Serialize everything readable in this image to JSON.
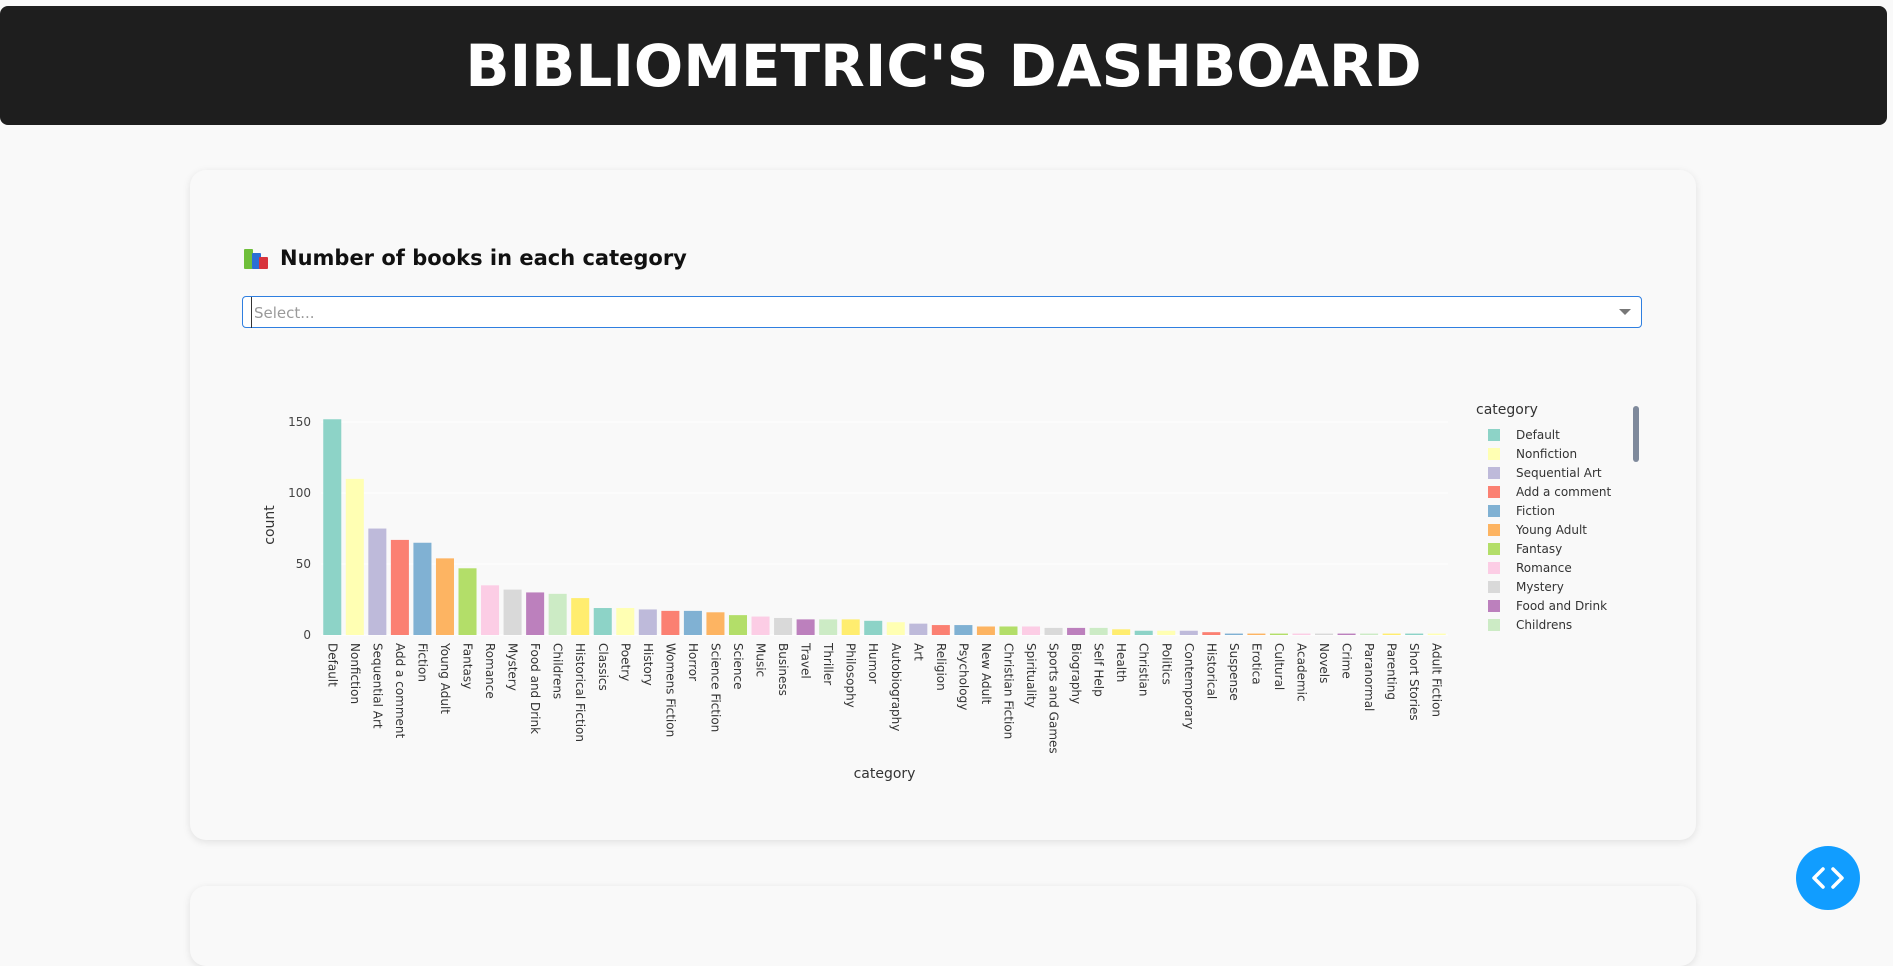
{
  "header": {
    "title": "BIBLIOMETRIC'S DASHBOARD"
  },
  "card": {
    "title": "Number of books in each category",
    "select_placeholder": "Select..."
  },
  "fab": {
    "icon": "code-icon"
  },
  "chart_data": {
    "type": "bar",
    "xlabel": "category",
    "ylabel": "count",
    "ylim": [
      0,
      155
    ],
    "yticks": [
      0,
      50,
      100,
      150
    ],
    "grid": true,
    "legend_title": "category",
    "legend_position": "right",
    "categories": [
      "Default",
      "Nonfiction",
      "Sequential Art",
      "Add a comment",
      "Fiction",
      "Young Adult",
      "Fantasy",
      "Romance",
      "Mystery",
      "Food and Drink",
      "Childrens",
      "Historical Fiction",
      "Classics",
      "Poetry",
      "History",
      "Womens Fiction",
      "Horror",
      "Science Fiction",
      "Science",
      "Music",
      "Business",
      "Travel",
      "Thriller",
      "Philosophy",
      "Humor",
      "Autobiography",
      "Art",
      "Religion",
      "Psychology",
      "New Adult",
      "Christian Fiction",
      "Spirituality",
      "Sports and Games",
      "Biography",
      "Self Help",
      "Health",
      "Christian",
      "Politics",
      "Contemporary",
      "Historical",
      "Suspense",
      "Erotica",
      "Cultural",
      "Academic",
      "Novels",
      "Crime",
      "Paranormal",
      "Parenting",
      "Short Stories",
      "Adult Fiction"
    ],
    "values": [
      152,
      110,
      75,
      67,
      65,
      54,
      47,
      35,
      32,
      30,
      29,
      26,
      19,
      19,
      18,
      17,
      17,
      16,
      14,
      13,
      12,
      11,
      11,
      11,
      10,
      9,
      8,
      7,
      7,
      6,
      6,
      6,
      5,
      5,
      5,
      4,
      3,
      3,
      3,
      2,
      1,
      1,
      1,
      1,
      1,
      1,
      1,
      1,
      1,
      1
    ],
    "colors": [
      "#8dd3c7",
      "#ffffb3",
      "#bebada",
      "#fb8072",
      "#80b1d3",
      "#fdb462",
      "#b3de69",
      "#fccde5",
      "#d9d9d9",
      "#bc80bd",
      "#ccebc5",
      "#ffed6f"
    ],
    "legend_visible": [
      "Default",
      "Nonfiction",
      "Sequential Art",
      "Add a comment",
      "Fiction",
      "Young Adult",
      "Fantasy",
      "Romance",
      "Mystery",
      "Food and Drink",
      "Childrens"
    ]
  }
}
